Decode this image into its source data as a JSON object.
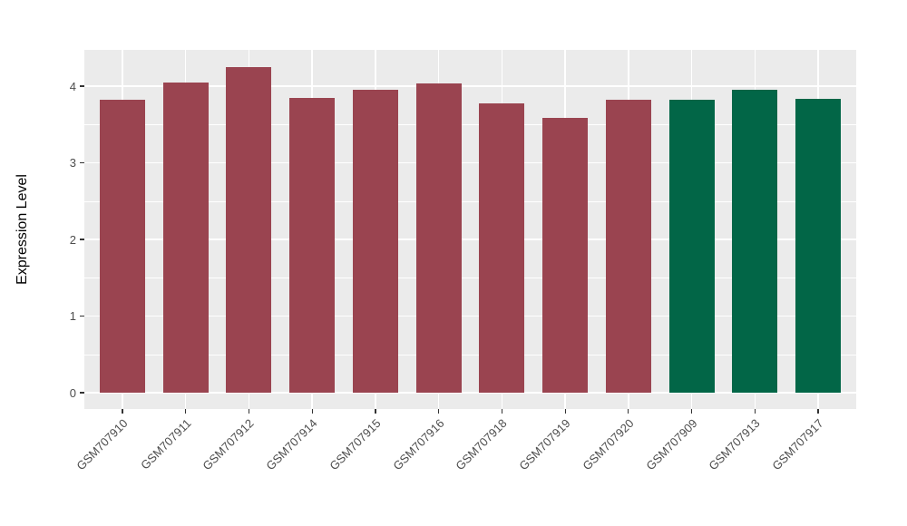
{
  "chart_data": {
    "type": "bar",
    "title": "",
    "xlabel": "",
    "ylabel": "Expression Level",
    "categories": [
      "GSM707910",
      "GSM707911",
      "GSM707912",
      "GSM707914",
      "GSM707915",
      "GSM707916",
      "GSM707918",
      "GSM707919",
      "GSM707920",
      "GSM707909",
      "GSM707913",
      "GSM707917"
    ],
    "values": [
      3.82,
      4.05,
      4.25,
      3.85,
      3.95,
      4.04,
      3.78,
      3.59,
      3.82,
      3.82,
      3.95,
      3.84
    ],
    "bar_colors": [
      "#9A4450",
      "#9A4450",
      "#9A4450",
      "#9A4450",
      "#9A4450",
      "#9A4450",
      "#9A4450",
      "#9A4450",
      "#9A4450",
      "#026647",
      "#026647",
      "#026647"
    ],
    "group_colors": {
      "maroon_group": "#9A4450",
      "green_group": "#026647"
    },
    "yticks": [
      0,
      1,
      2,
      3,
      4
    ],
    "minor_yticks": [
      0.5,
      1.5,
      2.5,
      3.5
    ],
    "ylim": [
      0,
      4.47
    ],
    "legend": "none",
    "panel_background": "#EBEBEB",
    "grid_color": "#FFFFFF",
    "tick_label_color": "#4D4D4D",
    "axis_title_color": "#000000"
  }
}
